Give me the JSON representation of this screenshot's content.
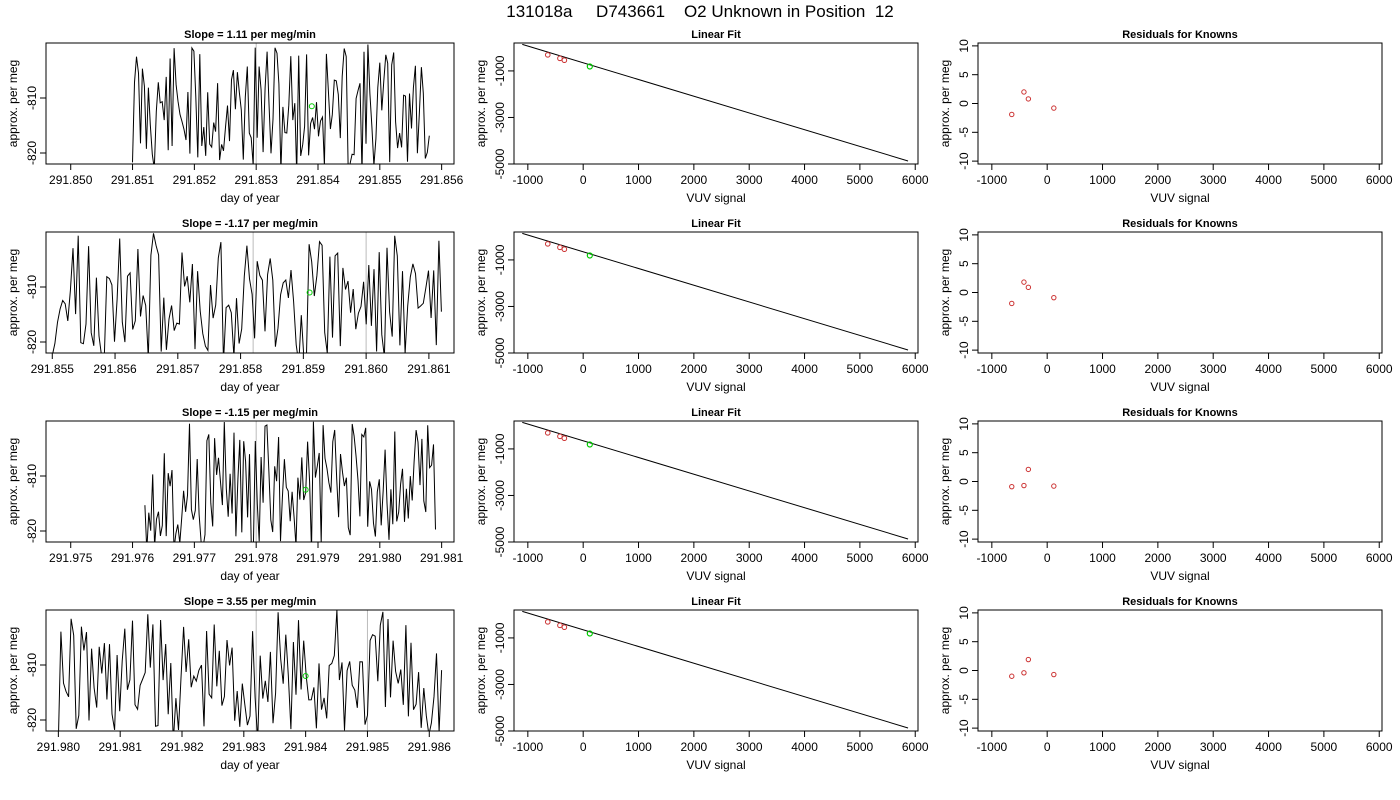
{
  "page_title": "131018a     D743661    O2 Unknown in Position  12",
  "chart_data": [
    {
      "type": "line",
      "title": "Slope =  1.11  per meg/min",
      "xlabel": "day of year",
      "ylabel": "approx. per meg",
      "xlim": [
        291.8496,
        291.8562
      ],
      "ylim": [
        -822,
        -800
      ],
      "xticks": [
        "291.850",
        "291.851",
        "291.852",
        "291.853",
        "291.854",
        "291.855",
        "291.856"
      ],
      "yticks": [
        "-810",
        "-820"
      ],
      "marker_x": 291.8539,
      "marker_y": -811.5,
      "marker_color": "#00cc00",
      "vline_x": 291.853,
      "trace_start": 291.851,
      "trace_end": 291.8558,
      "seed": 11
    },
    {
      "type": "scatter",
      "title": "Linear Fit",
      "xlabel": "VUV signal",
      "ylabel": "approx. per meg",
      "xlim": [
        -1250,
        6050
      ],
      "ylim": [
        -5000,
        200
      ],
      "xticks": [
        "-1000",
        "0",
        "1000",
        "2000",
        "3000",
        "4000",
        "5000",
        "6000"
      ],
      "yticks": [
        "-1000",
        "-3000",
        "-5000"
      ],
      "line": [
        [
          -1100,
          140
        ],
        [
          5870,
          -4870
        ]
      ],
      "knowns": [
        [
          -640,
          -310
        ],
        [
          -420,
          -460
        ],
        [
          -340,
          -540
        ]
      ],
      "known_color": "#cc3333",
      "unknown": [
        [
          120,
          -810
        ]
      ],
      "unknown_color": "#00cc00"
    },
    {
      "type": "scatter",
      "title": "Residuals for Knowns",
      "xlabel": "VUV signal",
      "ylabel": "approx. per meg",
      "xlim": [
        -1250,
        6050
      ],
      "ylim": [
        -10.5,
        10.5
      ],
      "xticks": [
        "-1000",
        "0",
        "1000",
        "2000",
        "3000",
        "4000",
        "5000",
        "6000"
      ],
      "yticks": [
        "10",
        "5",
        "0",
        "-5",
        "-10"
      ],
      "points": [
        [
          -640,
          -1.9
        ],
        [
          -420,
          2.0
        ],
        [
          -340,
          0.8
        ],
        [
          120,
          -0.8
        ]
      ],
      "point_color": "#cc3333"
    },
    {
      "type": "line",
      "title": "Slope =  -1.17  per meg/min",
      "xlabel": "day of year",
      "ylabel": "approx. per meg",
      "xlim": [
        291.8549,
        291.8614
      ],
      "ylim": [
        -822,
        -800
      ],
      "xticks": [
        "291.855",
        "291.856",
        "291.857",
        "291.858",
        "291.859",
        "291.860",
        "291.861"
      ],
      "yticks": [
        "-810",
        "-820"
      ],
      "marker_x": 291.8591,
      "marker_y": -811.0,
      "marker_color": "#00cc00",
      "vline_x": 291.8582,
      "vline2_x": 291.86,
      "trace_start": 291.855,
      "trace_end": 291.8612,
      "seed": 23
    },
    {
      "type": "scatter",
      "title": "Linear Fit",
      "xlabel": "VUV signal",
      "ylabel": "approx. per meg",
      "xlim": [
        -1250,
        6050
      ],
      "ylim": [
        -5000,
        200
      ],
      "xticks": [
        "-1000",
        "0",
        "1000",
        "2000",
        "3000",
        "4000",
        "5000",
        "6000"
      ],
      "yticks": [
        "-1000",
        "-3000",
        "-5000"
      ],
      "line": [
        [
          -1100,
          140
        ],
        [
          5870,
          -4870
        ]
      ],
      "knowns": [
        [
          -640,
          -310
        ],
        [
          -420,
          -460
        ],
        [
          -340,
          -540
        ]
      ],
      "known_color": "#cc3333",
      "unknown": [
        [
          120,
          -810
        ]
      ],
      "unknown_color": "#00cc00"
    },
    {
      "type": "scatter",
      "title": "Residuals for Knowns",
      "xlabel": "VUV signal",
      "ylabel": "approx. per meg",
      "xlim": [
        -1250,
        6050
      ],
      "ylim": [
        -10.5,
        10.5
      ],
      "xticks": [
        "-1000",
        "0",
        "1000",
        "2000",
        "3000",
        "4000",
        "5000",
        "6000"
      ],
      "yticks": [
        "10",
        "5",
        "0",
        "-5",
        "-10"
      ],
      "points": [
        [
          -640,
          -1.9
        ],
        [
          -420,
          1.8
        ],
        [
          -340,
          0.9
        ],
        [
          120,
          -0.9
        ]
      ],
      "point_color": "#cc3333"
    },
    {
      "type": "line",
      "title": "Slope =  -1.15  per meg/min",
      "xlabel": "day of year",
      "ylabel": "approx. per meg",
      "xlim": [
        291.9746,
        291.9812
      ],
      "ylim": [
        -822,
        -800
      ],
      "xticks": [
        "291.975",
        "291.976",
        "291.977",
        "291.978",
        "291.979",
        "291.980",
        "291.981"
      ],
      "yticks": [
        "-810",
        "-820"
      ],
      "marker_x": 291.9788,
      "marker_y": -812.5,
      "marker_color": "#00cc00",
      "vline_x": 291.978,
      "trace_start": 291.9762,
      "trace_end": 291.9809,
      "seed": 37
    },
    {
      "type": "scatter",
      "title": "Linear Fit",
      "xlabel": "VUV signal",
      "ylabel": "approx. per meg",
      "xlim": [
        -1250,
        6050
      ],
      "ylim": [
        -5000,
        200
      ],
      "xticks": [
        "-1000",
        "0",
        "1000",
        "2000",
        "3000",
        "4000",
        "5000",
        "6000"
      ],
      "yticks": [
        "-1000",
        "-3000",
        "-5000"
      ],
      "line": [
        [
          -1100,
          140
        ],
        [
          5870,
          -4870
        ]
      ],
      "knowns": [
        [
          -640,
          -310
        ],
        [
          -420,
          -460
        ],
        [
          -340,
          -540
        ]
      ],
      "known_color": "#cc3333",
      "unknown": [
        [
          120,
          -810
        ]
      ],
      "unknown_color": "#00cc00"
    },
    {
      "type": "scatter",
      "title": "Residuals for Knowns",
      "xlabel": "VUV signal",
      "ylabel": "approx. per meg",
      "xlim": [
        -1250,
        6050
      ],
      "ylim": [
        -10.5,
        10.5
      ],
      "xticks": [
        "-1000",
        "0",
        "1000",
        "2000",
        "3000",
        "4000",
        "5000",
        "6000"
      ],
      "yticks": [
        "10",
        "5",
        "0",
        "-5",
        "-10"
      ],
      "points": [
        [
          -640,
          -0.9
        ],
        [
          -420,
          -0.7
        ],
        [
          -340,
          2.1
        ],
        [
          120,
          -0.8
        ]
      ],
      "point_color": "#cc3333"
    },
    {
      "type": "line",
      "title": "Slope =  3.55  per meg/min",
      "xlabel": "day of year",
      "ylabel": "approx. per meg",
      "xlim": [
        291.9798,
        291.9864
      ],
      "ylim": [
        -822,
        -800
      ],
      "xticks": [
        "291.980",
        "291.981",
        "291.982",
        "291.983",
        "291.984",
        "291.985",
        "291.986"
      ],
      "yticks": [
        "-810",
        "-820"
      ],
      "marker_x": 291.984,
      "marker_y": -812.0,
      "marker_color": "#00cc00",
      "vline_x": 291.9832,
      "vline2_x": 291.985,
      "trace_start": 291.98,
      "trace_end": 291.9862,
      "seed": 41
    },
    {
      "type": "scatter",
      "title": "Linear Fit",
      "xlabel": "VUV signal",
      "ylabel": "approx. per meg",
      "xlim": [
        -1250,
        6050
      ],
      "ylim": [
        -5000,
        200
      ],
      "xticks": [
        "-1000",
        "0",
        "1000",
        "2000",
        "3000",
        "4000",
        "5000",
        "6000"
      ],
      "yticks": [
        "-1000",
        "-3000",
        "-5000"
      ],
      "line": [
        [
          -1100,
          140
        ],
        [
          5870,
          -4870
        ]
      ],
      "knowns": [
        [
          -640,
          -310
        ],
        [
          -420,
          -460
        ],
        [
          -340,
          -540
        ]
      ],
      "known_color": "#cc3333",
      "unknown": [
        [
          120,
          -810
        ]
      ],
      "unknown_color": "#00cc00"
    },
    {
      "type": "scatter",
      "title": "Residuals for Knowns",
      "xlabel": "VUV signal",
      "ylabel": "approx. per meg",
      "xlim": [
        -1250,
        6050
      ],
      "ylim": [
        -10.5,
        10.5
      ],
      "xticks": [
        "-1000",
        "0",
        "1000",
        "2000",
        "3000",
        "4000",
        "5000",
        "6000"
      ],
      "yticks": [
        "10",
        "5",
        "0",
        "-5",
        "-10"
      ],
      "points": [
        [
          -640,
          -1.0
        ],
        [
          -420,
          -0.4
        ],
        [
          -340,
          1.9
        ],
        [
          120,
          -0.7
        ]
      ],
      "point_color": "#cc3333"
    }
  ]
}
